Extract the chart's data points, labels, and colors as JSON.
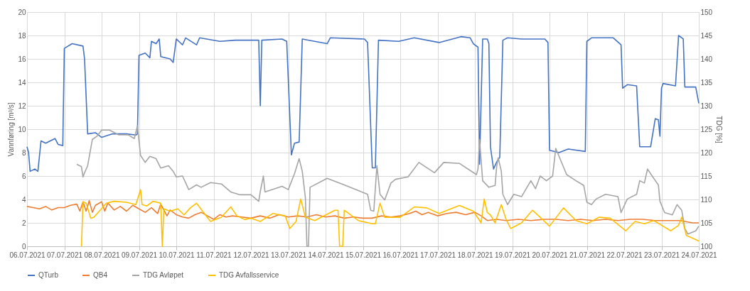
{
  "chart_data": {
    "type": "line",
    "ylabel": "Vannføring [m³/s]",
    "y2label": "TDG [%]",
    "xlim": [
      "2021-07-06",
      "2021-07-24"
    ],
    "xticks": [
      {
        "value": "2021-07-06",
        "label": "06.07.2021"
      },
      {
        "value": "2021-07-07",
        "label": "07.07.2021"
      },
      {
        "value": "2021-07-08",
        "label": "08.07.2021"
      },
      {
        "value": "2021-07-09",
        "label": "09.07.2021"
      },
      {
        "value": "2021-07-10",
        "label": "10.07.2021"
      },
      {
        "value": "2021-07-11",
        "label": "11.07.2021"
      },
      {
        "value": "2021-07-12",
        "label": "12.07.2021"
      },
      {
        "value": "2021-07-13",
        "label": "13.07.2021"
      },
      {
        "value": "2021-07-14",
        "label": "14.07.2021"
      },
      {
        "value": "2021-07-15",
        "label": "15.07.2021"
      },
      {
        "value": "2021-07-16",
        "label": "16.07.2021"
      },
      {
        "value": "2021-07-17",
        "label": "17.07.2021"
      },
      {
        "value": "2021-07-18",
        "label": "18.07.2021"
      },
      {
        "value": "2021-07-19",
        "label": "19.07.2021"
      },
      {
        "value": "2021-07-20",
        "label": "20.07.2021"
      },
      {
        "value": "2021-07-21",
        "label": "21.07.2021"
      },
      {
        "value": "2021-07-22",
        "label": "22.07.2021"
      },
      {
        "value": "2021-07-23",
        "label": "23.07.2021"
      },
      {
        "value": "2021-07-24",
        "label": "24.07.2021"
      }
    ],
    "ylim": [
      0,
      20
    ],
    "yticks": [
      0,
      2,
      4,
      6,
      8,
      10,
      12,
      14,
      16,
      18,
      20
    ],
    "y2lim": [
      100,
      150
    ],
    "y2ticks": [
      100,
      105,
      110,
      115,
      120,
      125,
      130,
      135,
      140,
      145,
      150
    ],
    "grid": true,
    "legend": "bottom",
    "line_style": "solid",
    "series": [
      {
        "name": "QTurb",
        "color": "#4472c4",
        "x": [
          "2021-07-06T00:00",
          "2021-07-06T01:00",
          "2021-07-06T02:00",
          "2021-07-06T05:00",
          "2021-07-06T07:00",
          "2021-07-06T09:00",
          "2021-07-06T12:00",
          "2021-07-06T18:00",
          "2021-07-06T20:00",
          "2021-07-06T23:00",
          "2021-07-07T00:00",
          "2021-07-07T05:00",
          "2021-07-07T12:00",
          "2021-07-07T13:00",
          "2021-07-07T15:00",
          "2021-07-07T20:00",
          "2021-07-08T00:00",
          "2021-07-08T07:00",
          "2021-07-08T16:00",
          "2021-07-08T22:00",
          "2021-07-08T23:00",
          "2021-07-09T00:00",
          "2021-07-09T04:00",
          "2021-07-09T07:00",
          "2021-07-09T08:00",
          "2021-07-09T11:00",
          "2021-07-09T13:00",
          "2021-07-09T14:00",
          "2021-07-09T20:00",
          "2021-07-09T22:00",
          "2021-07-10T00:00",
          "2021-07-10T04:00",
          "2021-07-10T06:00",
          "2021-07-10T13:00",
          "2021-07-10T15:00",
          "2021-07-11T04:00",
          "2021-07-11T14:00",
          "2021-07-12T00:00",
          "2021-07-12T05:00",
          "2021-07-12T06:00",
          "2021-07-12T07:00",
          "2021-07-12T20:00",
          "2021-07-12T23:00",
          "2021-07-13T02:00",
          "2021-07-13T04:00",
          "2021-07-13T07:00",
          "2021-07-13T09:00",
          "2021-07-14T01:00",
          "2021-07-14T03:00",
          "2021-07-15T01:00",
          "2021-07-15T03:00",
          "2021-07-15T06:00",
          "2021-07-15T08:00",
          "2021-07-15T10:00",
          "2021-07-15T23:00",
          "2021-07-16T09:00",
          "2021-07-17T01:00",
          "2021-07-17T15:00",
          "2021-07-17T21:00",
          "2021-07-17T23:00",
          "2021-07-18T02:00",
          "2021-07-18T03:00",
          "2021-07-18T05:00",
          "2021-07-18T08:00",
          "2021-07-18T09:00",
          "2021-07-18T10:00",
          "2021-07-18T12:00",
          "2021-07-18T14:00",
          "2021-07-18T16:00",
          "2021-07-18T18:00",
          "2021-07-18T21:00",
          "2021-07-19T06:00",
          "2021-07-19T21:00",
          "2021-07-19T23:00",
          "2021-07-20T00:00",
          "2021-07-20T06:00",
          "2021-07-20T12:00",
          "2021-07-20T23:00",
          "2021-07-21T00:00",
          "2021-07-21T03:00",
          "2021-07-21T17:00",
          "2021-07-21T22:00",
          "2021-07-21T23:00",
          "2021-07-22T02:00",
          "2021-07-22T08:00",
          "2021-07-22T10:00",
          "2021-07-22T17:00",
          "2021-07-22T20:00",
          "2021-07-22T22:00",
          "2021-07-22T23:00",
          "2021-07-23T00:00",
          "2021-07-23T01:00",
          "2021-07-23T09:00",
          "2021-07-23T11:00",
          "2021-07-23T14:00",
          "2021-07-23T15:00",
          "2021-07-23T22:00",
          "2021-07-24T00:00"
        ],
        "values": [
          8.5,
          8.0,
          6.4,
          6.6,
          6.4,
          9.0,
          8.8,
          9.2,
          8.7,
          8.6,
          16.9,
          17.3,
          17.1,
          16.0,
          9.6,
          9.7,
          9.3,
          9.6,
          9.6,
          9.5,
          9.6,
          16.3,
          16.5,
          16.1,
          17.5,
          17.3,
          17.7,
          16.2,
          16.0,
          15.7,
          17.7,
          17.2,
          17.8,
          17.2,
          17.8,
          17.5,
          17.6,
          17.6,
          17.6,
          12.0,
          17.6,
          17.7,
          17.5,
          7.8,
          8.8,
          8.9,
          17.7,
          17.3,
          17.8,
          17.7,
          17.4,
          6.7,
          6.7,
          17.6,
          17.5,
          17.8,
          17.4,
          17.9,
          17.8,
          17.3,
          17.0,
          7.0,
          17.7,
          17.7,
          17.3,
          8.5,
          6.6,
          7.2,
          7.6,
          17.6,
          17.8,
          17.7,
          17.7,
          17.4,
          8.2,
          8.0,
          8.3,
          8.1,
          17.5,
          17.8,
          17.8,
          17.2,
          13.5,
          13.8,
          13.7,
          8.5,
          8.5,
          10.9,
          10.8,
          9.4,
          13.5,
          13.9,
          13.7,
          18.0,
          17.7,
          13.6,
          13.6,
          12.2
        ]
      },
      {
        "name": "QB4",
        "color": "#ed7d31",
        "x": [
          "2021-07-06T00:00",
          "2021-07-06T04:00",
          "2021-07-06T08:00",
          "2021-07-06T12:00",
          "2021-07-06T16:00",
          "2021-07-06T20:00",
          "2021-07-07T00:00",
          "2021-07-07T04:00",
          "2021-07-07T08:00",
          "2021-07-07T10:00",
          "2021-07-07T12:00",
          "2021-07-07T14:00",
          "2021-07-07T16:00",
          "2021-07-07T18:00",
          "2021-07-07T20:00",
          "2021-07-08T00:00",
          "2021-07-08T02:00",
          "2021-07-08T04:00",
          "2021-07-08T08:00",
          "2021-07-08T12:00",
          "2021-07-08T16:00",
          "2021-07-08T20:00",
          "2021-07-09T00:00",
          "2021-07-09T04:00",
          "2021-07-09T08:00",
          "2021-07-09T12:00",
          "2021-07-09T14:00",
          "2021-07-09T18:00",
          "2021-07-09T20:00",
          "2021-07-10T00:00",
          "2021-07-10T04:00",
          "2021-07-10T08:00",
          "2021-07-10T12:00",
          "2021-07-10T16:00",
          "2021-07-10T20:00",
          "2021-07-11T00:00",
          "2021-07-11T04:00",
          "2021-07-11T08:00",
          "2021-07-11T12:00",
          "2021-07-11T18:00",
          "2021-07-12T00:00",
          "2021-07-12T06:00",
          "2021-07-12T12:00",
          "2021-07-12T18:00",
          "2021-07-13T00:00",
          "2021-07-13T06:00",
          "2021-07-13T12:00",
          "2021-07-13T18:00",
          "2021-07-14T00:00",
          "2021-07-14T06:00",
          "2021-07-14T12:00",
          "2021-07-14T18:00",
          "2021-07-15T00:00",
          "2021-07-15T06:00",
          "2021-07-15T12:00",
          "2021-07-15T18:00",
          "2021-07-16T00:00",
          "2021-07-16T06:00",
          "2021-07-16T10:00",
          "2021-07-16T14:00",
          "2021-07-16T18:00",
          "2021-07-17T00:00",
          "2021-07-17T06:00",
          "2021-07-17T12:00",
          "2021-07-17T18:00",
          "2021-07-18T00:00",
          "2021-07-18T04:00",
          "2021-07-18T08:00",
          "2021-07-18T14:00",
          "2021-07-18T20:00",
          "2021-07-19T04:00",
          "2021-07-19T12:00",
          "2021-07-19T20:00",
          "2021-07-20T04:00",
          "2021-07-20T12:00",
          "2021-07-20T20:00",
          "2021-07-21T04:00",
          "2021-07-21T12:00",
          "2021-07-21T20:00",
          "2021-07-22T04:00",
          "2021-07-22T12:00",
          "2021-07-22T20:00",
          "2021-07-23T04:00",
          "2021-07-23T12:00",
          "2021-07-23T20:00",
          "2021-07-24T00:00"
        ],
        "values": [
          3.4,
          3.3,
          3.2,
          3.4,
          3.1,
          3.3,
          3.3,
          3.5,
          3.6,
          3.0,
          3.8,
          3.0,
          3.9,
          2.9,
          3.5,
          3.8,
          3.0,
          3.7,
          3.1,
          3.4,
          3.0,
          3.5,
          3.2,
          2.9,
          3.3,
          2.8,
          3.6,
          2.6,
          3.1,
          2.7,
          2.5,
          2.4,
          2.7,
          2.9,
          2.6,
          2.3,
          2.7,
          2.5,
          2.6,
          2.5,
          2.4,
          2.6,
          2.4,
          2.7,
          2.5,
          2.6,
          2.5,
          2.7,
          2.5,
          2.6,
          2.4,
          2.5,
          2.4,
          2.4,
          2.6,
          2.5,
          2.6,
          2.8,
          3.0,
          2.7,
          2.9,
          2.6,
          2.8,
          2.9,
          2.7,
          2.9,
          2.6,
          2.2,
          2.3,
          2.2,
          2.3,
          2.2,
          2.3,
          2.3,
          2.2,
          2.3,
          2.2,
          2.3,
          2.2,
          2.3,
          2.3,
          2.2,
          2.2,
          2.2,
          2.0,
          2.0
        ]
      },
      {
        "name": "TDG Avløpet",
        "color": "#a5a5a5",
        "axis": "y2",
        "x": [
          "2021-07-07T08:00",
          "2021-07-07T11:00",
          "2021-07-07T12:00",
          "2021-07-07T13:00",
          "2021-07-07T15:00",
          "2021-07-07T18:00",
          "2021-07-07T21:00",
          "2021-07-08T00:00",
          "2021-07-08T05:00",
          "2021-07-08T11:00",
          "2021-07-08T17:00",
          "2021-07-08T21:00",
          "2021-07-08T23:00",
          "2021-07-09T01:00",
          "2021-07-09T04:00",
          "2021-07-09T07:00",
          "2021-07-09T11:00",
          "2021-07-09T14:00",
          "2021-07-09T19:00",
          "2021-07-09T22:00",
          "2021-07-10T00:00",
          "2021-07-10T04:00",
          "2021-07-10T08:00",
          "2021-07-10T13:00",
          "2021-07-10T16:00",
          "2021-07-10T22:00",
          "2021-07-11T05:00",
          "2021-07-11T11:00",
          "2021-07-11T17:00",
          "2021-07-12T00:00",
          "2021-07-12T05:00",
          "2021-07-12T06:00",
          "2021-07-12T08:00",
          "2021-07-12T09:00",
          "2021-07-12T20:00",
          "2021-07-13T00:00",
          "2021-07-13T04:00",
          "2021-07-13T07:00",
          "2021-07-13T09:00",
          "2021-07-13T11:00",
          "2021-07-13T12:00",
          "2021-07-13T13:00",
          "2021-07-13T14:00",
          "2021-07-14T01:00",
          "2021-07-14T12:00",
          "2021-07-15T03:00",
          "2021-07-15T05:00",
          "2021-07-15T07:00",
          "2021-07-15T09:00",
          "2021-07-15T11:00",
          "2021-07-15T14:00",
          "2021-07-15T18:00",
          "2021-07-15T21:00",
          "2021-07-16T05:00",
          "2021-07-16T12:00",
          "2021-07-16T22:00",
          "2021-07-17T04:00",
          "2021-07-17T14:00",
          "2021-07-18T01:00",
          "2021-07-18T02:00",
          "2021-07-18T03:00",
          "2021-07-18T05:00",
          "2021-07-18T09:00",
          "2021-07-18T13:00",
          "2021-07-18T14:00",
          "2021-07-18T15:00",
          "2021-07-18T17:00",
          "2021-07-18T18:00",
          "2021-07-18T21:00",
          "2021-07-19T01:00",
          "2021-07-19T06:00",
          "2021-07-19T12:00",
          "2021-07-19T15:00",
          "2021-07-19T18:00",
          "2021-07-19T22:00",
          "2021-07-20T02:00",
          "2021-07-20T04:00",
          "2021-07-20T11:00",
          "2021-07-20T17:00",
          "2021-07-20T22:00",
          "2021-07-21T00:00",
          "2021-07-21T03:00",
          "2021-07-21T06:00",
          "2021-07-21T12:00",
          "2021-07-21T20:00",
          "2021-07-21T22:00",
          "2021-07-22T02:00",
          "2021-07-22T08:00",
          "2021-07-22T10:00",
          "2021-07-22T13:00",
          "2021-07-22T15:00",
          "2021-07-22T19:00",
          "2021-07-22T22:00",
          "2021-07-22T23:00",
          "2021-07-23T02:00",
          "2021-07-23T07:00",
          "2021-07-23T10:00",
          "2021-07-23T13:00",
          "2021-07-23T15:00",
          "2021-07-23T17:00",
          "2021-07-23T22:00",
          "2021-07-24T00:00"
        ],
        "values": [
          117.5,
          117.0,
          114.8,
          115.7,
          117.2,
          122.8,
          123.5,
          124.8,
          124.8,
          123.8,
          123.8,
          123.0,
          125.7,
          119.4,
          117.9,
          119.2,
          118.7,
          116.7,
          117.2,
          116.0,
          114.8,
          115.0,
          112.1,
          113.1,
          112.6,
          113.6,
          113.3,
          111.6,
          111.0,
          111.0,
          109.6,
          111.7,
          115.0,
          111.6,
          112.8,
          112.1,
          115.5,
          118.7,
          116.0,
          110.4,
          100.0,
          100.0,
          112.6,
          114.5,
          113.1,
          111.1,
          107.7,
          107.5,
          117.2,
          111.1,
          109.9,
          113.5,
          114.3,
          114.8,
          117.9,
          115.7,
          117.9,
          117.7,
          115.3,
          116.5,
          122.8,
          114.0,
          112.6,
          113.0,
          117.0,
          118.9,
          116.0,
          111.1,
          108.9,
          111.1,
          110.6,
          114.0,
          112.3,
          115.0,
          114.0,
          115.0,
          120.9,
          115.3,
          114.0,
          113.0,
          109.4,
          108.9,
          110.1,
          111.1,
          110.6,
          107.2,
          110.1,
          111.1,
          114.0,
          113.5,
          116.5,
          114.5,
          113.1,
          109.6,
          107.2,
          106.7,
          108.9,
          107.7,
          103.8,
          102.6,
          103.3,
          104.3
        ]
      },
      {
        "name": "TDG Avfallsservice",
        "color": "#ffc000",
        "axis": "y2",
        "x": [
          "2021-07-07T11:00",
          "2021-07-07T12:00",
          "2021-07-07T14:00",
          "2021-07-07T17:00",
          "2021-07-07T19:00",
          "2021-07-07T23:00",
          "2021-07-08T03:00",
          "2021-07-08T08:00",
          "2021-07-08T16:00",
          "2021-07-08T22:00",
          "2021-07-09T01:00",
          "2021-07-09T02:00",
          "2021-07-09T05:00",
          "2021-07-09T09:00",
          "2021-07-09T14:00",
          "2021-07-09T15:00",
          "2021-07-09T16:00",
          "2021-07-09T20:00",
          "2021-07-10T01:00",
          "2021-07-10T05:00",
          "2021-07-10T09:00",
          "2021-07-10T13:00",
          "2021-07-10T18:00",
          "2021-07-10T22:00",
          "2021-07-11T05:00",
          "2021-07-11T11:00",
          "2021-07-11T15:00",
          "2021-07-11T20:00",
          "2021-07-12T00:00",
          "2021-07-12T06:00",
          "2021-07-12T14:00",
          "2021-07-12T22:00",
          "2021-07-13T01:00",
          "2021-07-13T05:00",
          "2021-07-13T08:00",
          "2021-07-13T11:00",
          "2021-07-13T17:00",
          "2021-07-14T06:00",
          "2021-07-14T08:00",
          "2021-07-14T09:00",
          "2021-07-14T11:00",
          "2021-07-14T12:00",
          "2021-07-14T21:00",
          "2021-07-15T06:00",
          "2021-07-15T08:00",
          "2021-07-15T11:00",
          "2021-07-15T14:00",
          "2021-07-16T00:00",
          "2021-07-16T09:00",
          "2021-07-16T17:00",
          "2021-07-17T01:00",
          "2021-07-17T14:00",
          "2021-07-17T23:00",
          "2021-07-18T04:00",
          "2021-07-18T06:00",
          "2021-07-18T08:00",
          "2021-07-18T10:00",
          "2021-07-18T13:00",
          "2021-07-18T17:00",
          "2021-07-18T20:00",
          "2021-07-18T23:00",
          "2021-07-19T06:00",
          "2021-07-19T13:00",
          "2021-07-19T18:00",
          "2021-07-20T00:00",
          "2021-07-20T09:00",
          "2021-07-20T17:00",
          "2021-07-21T00:00",
          "2021-07-21T08:00",
          "2021-07-21T15:00",
          "2021-07-22T01:00",
          "2021-07-22T07:00",
          "2021-07-22T13:00",
          "2021-07-22T19:00",
          "2021-07-23T01:00",
          "2021-07-23T06:00",
          "2021-07-23T11:00",
          "2021-07-23T13:00",
          "2021-07-23T16:00",
          "2021-07-23T21:00",
          "2021-07-24T00:00"
        ],
        "values": [
          100.0,
          109.5,
          109.2,
          106.0,
          106.2,
          107.7,
          109.2,
          109.6,
          109.4,
          108.9,
          112.1,
          108.9,
          108.6,
          109.6,
          109.2,
          100.0,
          108.0,
          107.5,
          108.0,
          106.7,
          108.2,
          109.2,
          107.0,
          105.3,
          106.2,
          108.4,
          106.5,
          105.7,
          106.0,
          105.3,
          107.0,
          106.5,
          103.8,
          105.3,
          110.1,
          106.2,
          105.5,
          107.7,
          107.7,
          100.0,
          100.0,
          107.7,
          105.5,
          104.8,
          104.8,
          109.2,
          106.2,
          106.2,
          108.4,
          108.2,
          107.0,
          108.7,
          107.5,
          105.0,
          110.1,
          107.2,
          106.7,
          105.0,
          108.9,
          105.8,
          103.8,
          105.0,
          107.7,
          106.2,
          104.3,
          108.2,
          105.5,
          104.8,
          106.2,
          106.0,
          103.3,
          105.3,
          104.8,
          105.5,
          104.3,
          103.3,
          104.5,
          106.2,
          102.3,
          101.6,
          101.1
        ]
      }
    ]
  }
}
